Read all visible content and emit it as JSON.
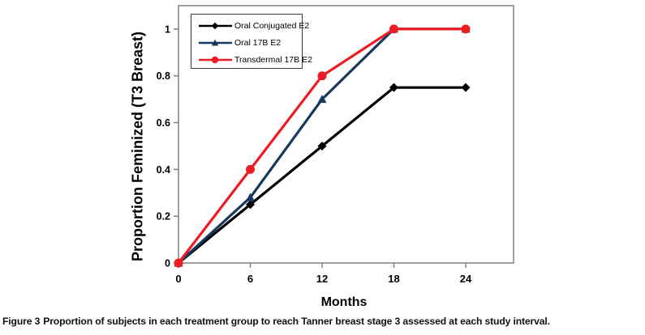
{
  "figure": {
    "caption_label": "Figure 3",
    "caption_text": "Proportion of subjects in each treatment group to reach Tanner breast stage 3 assessed at each study interval."
  },
  "chart_data": {
    "type": "line",
    "title": "",
    "xlabel": "Months",
    "ylabel": "Proportion Feminized (T3 Breast)",
    "x": [
      0,
      6,
      12,
      18,
      24
    ],
    "x_tick_labels": [
      "0",
      "6",
      "12",
      "18",
      "24"
    ],
    "y_tick_values": [
      0,
      0.2,
      0.4,
      0.6,
      0.8,
      1
    ],
    "y_tick_labels": [
      "0",
      "0.2",
      "0.4",
      "0.6",
      "0.8",
      "1"
    ],
    "xlim": [
      0,
      28
    ],
    "ylim": [
      0,
      1.1
    ],
    "grid": false,
    "legend_position": "top-left-inside",
    "axis_color": "#808080",
    "series": [
      {
        "name": "Oral Conjugated E2",
        "color": "#000000",
        "marker": "diamond",
        "values": [
          0,
          0.25,
          0.5,
          0.75,
          0.75
        ]
      },
      {
        "name": "Oral 17B E2",
        "color": "#17375E",
        "marker": "triangle",
        "values": [
          0,
          0.28,
          0.7,
          1.0,
          1.0
        ]
      },
      {
        "name": "Transdermal 17B E2",
        "color": "#EC1C24",
        "marker": "circle",
        "values": [
          0,
          0.4,
          0.8,
          1.0,
          1.0
        ]
      }
    ]
  }
}
